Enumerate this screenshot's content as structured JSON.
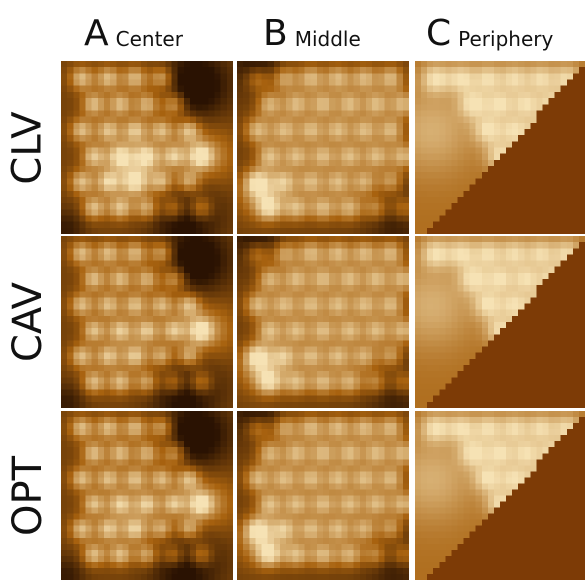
{
  "columns": [
    {
      "letter": "A",
      "name": "Center"
    },
    {
      "letter": "B",
      "name": "Middle"
    },
    {
      "letter": "C",
      "name": "Periphery"
    }
  ],
  "rows": [
    "CLV",
    "CAV",
    "OPT"
  ],
  "colors": {
    "dark": "#2a1202",
    "mid": "#a8620f",
    "bright": "#f6e2b4",
    "periphery_background": "#7d3b06"
  }
}
